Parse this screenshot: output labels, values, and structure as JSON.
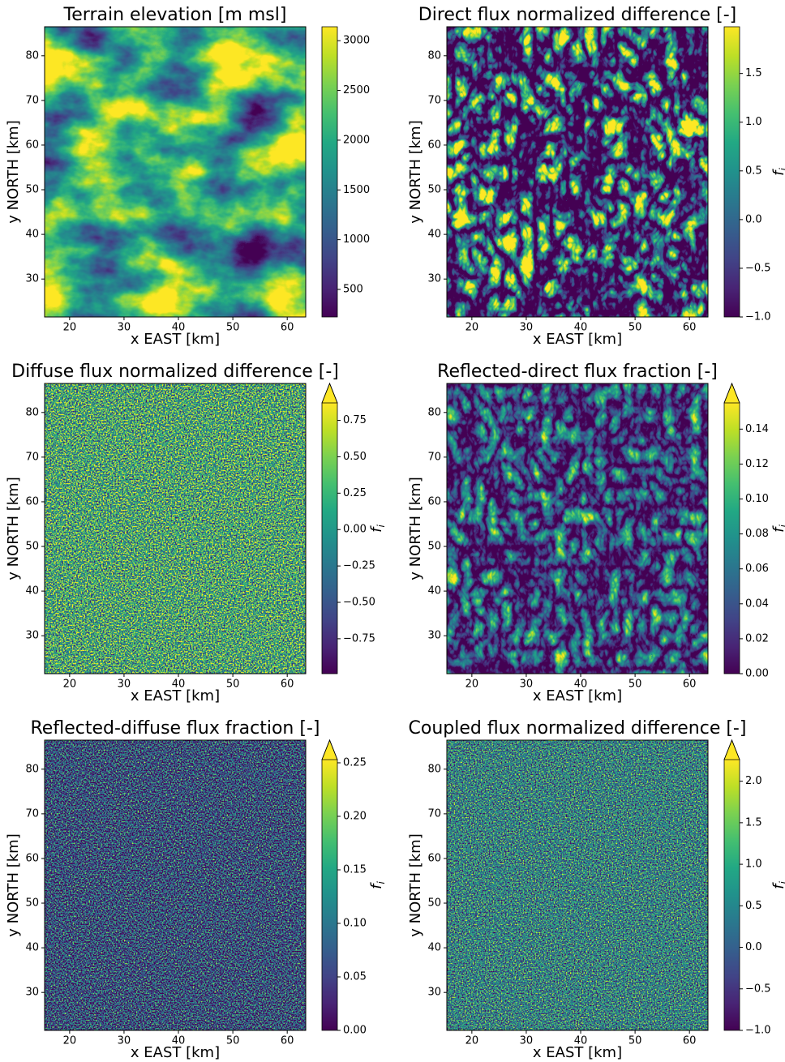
{
  "chart_data": [
    {
      "type": "heatmap",
      "title": "Terrain elevation [m msl]",
      "xlabel": "x EAST [km]",
      "ylabel": "y NORTH [km]",
      "xlim": [
        15.4,
        63.4
      ],
      "ylim": [
        21.5,
        86.5
      ],
      "xticks": [
        20,
        30,
        40,
        50,
        60
      ],
      "yticks": [
        30,
        40,
        50,
        60,
        70,
        80
      ],
      "colormap": "viridis",
      "colorbar": {
        "lim": [
          223,
          3140
        ],
        "ticks": [
          500,
          1000,
          1500,
          2000,
          2500,
          3000
        ],
        "extend": "neither"
      }
    },
    {
      "type": "heatmap",
      "title": "Direct flux normalized difference [-]",
      "xlabel": "x EAST [km]",
      "ylabel": "y NORTH [km]",
      "xlim": [
        15.4,
        63.4
      ],
      "ylim": [
        21.5,
        86.5
      ],
      "xticks": [
        20,
        30,
        40,
        50,
        60
      ],
      "yticks": [
        30,
        40,
        50,
        60,
        70,
        80
      ],
      "colormap": "viridis",
      "colorbar": {
        "lim": [
          -1,
          1.98
        ],
        "ticks": [
          {
            "value": -1,
            "label": "−1.0"
          },
          {
            "value": -0.5,
            "label": "−0.5"
          },
          {
            "value": 0,
            "label": "0.0"
          },
          0.5,
          {
            "value": 1,
            "label": "1.0"
          },
          1.5
        ],
        "extend": "neither",
        "label": {
          "base": "f",
          "sub": "i"
        }
      }
    },
    {
      "type": "heatmap",
      "title": "Diffuse flux normalized difference [-]",
      "xlabel": "x EAST [km]",
      "ylabel": "y NORTH [km]",
      "xlim": [
        15.4,
        63.4
      ],
      "ylim": [
        21.5,
        86.5
      ],
      "xticks": [
        20,
        30,
        40,
        50,
        60
      ],
      "yticks": [
        30,
        40,
        50,
        60,
        70,
        80
      ],
      "colormap": "viridis",
      "colorbar": {
        "lim": [
          -0.99,
          0.87
        ],
        "ticks": [
          {
            "value": -0.75,
            "label": "−0.75"
          },
          {
            "value": -0.5,
            "label": "−0.50"
          },
          {
            "value": -0.25,
            "label": "−0.25"
          },
          {
            "value": 0,
            "label": "0.00"
          },
          0.25,
          {
            "value": 0.5,
            "label": "0.50"
          },
          0.75
        ],
        "extend": "max",
        "label": {
          "base": "f",
          "sub": "i"
        }
      }
    },
    {
      "type": "heatmap",
      "title": "Reflected-direct flux fraction [-]",
      "xlabel": "x EAST [km]",
      "ylabel": "y NORTH [km]",
      "xlim": [
        15.4,
        63.4
      ],
      "ylim": [
        21.5,
        86.5
      ],
      "xticks": [
        20,
        30,
        40,
        50,
        60
      ],
      "yticks": [
        30,
        40,
        50,
        60,
        70,
        80
      ],
      "colormap": "viridis",
      "colorbar": {
        "lim": [
          0,
          0.155
        ],
        "ticks": [
          {
            "value": 0,
            "label": "0.00"
          },
          0.02,
          0.04,
          0.06,
          0.08,
          {
            "value": 0.1,
            "label": "0.10"
          },
          0.12,
          0.14
        ],
        "extend": "max",
        "label": {
          "base": "f",
          "sub": "i"
        }
      }
    },
    {
      "type": "heatmap",
      "title": "Reflected-diffuse flux fraction [-]",
      "xlabel": "x EAST [km]",
      "ylabel": "y NORTH [km]",
      "xlim": [
        15.4,
        63.4
      ],
      "ylim": [
        21.5,
        86.5
      ],
      "xticks": [
        20,
        30,
        40,
        50,
        60
      ],
      "yticks": [
        30,
        40,
        50,
        60,
        70,
        80
      ],
      "colormap": "viridis",
      "colorbar": {
        "lim": [
          0,
          0.253
        ],
        "ticks": [
          {
            "value": 0,
            "label": "0.00"
          },
          0.05,
          {
            "value": 0.1,
            "label": "0.10"
          },
          0.15,
          {
            "value": 0.2,
            "label": "0.20"
          },
          0.25
        ],
        "extend": "max",
        "label": {
          "base": "f",
          "sub": "i"
        }
      }
    },
    {
      "type": "heatmap",
      "title": "Coupled flux normalized difference [-]",
      "xlabel": "x EAST [km]",
      "ylabel": "y NORTH [km]",
      "xlim": [
        15.4,
        63.4
      ],
      "ylim": [
        21.5,
        86.5
      ],
      "xticks": [
        20,
        30,
        40,
        50,
        60
      ],
      "yticks": [
        30,
        40,
        50,
        60,
        70,
        80
      ],
      "colormap": "viridis",
      "colorbar": {
        "lim": [
          -1,
          2.26
        ],
        "ticks": [
          {
            "value": -1,
            "label": "−1.0"
          },
          {
            "value": -0.5,
            "label": "−0.5"
          },
          {
            "value": 0,
            "label": "0.0"
          },
          0.5,
          {
            "value": 1,
            "label": "1.0"
          },
          1.5,
          {
            "value": 2,
            "label": "2.0"
          }
        ],
        "extend": "max",
        "label": {
          "base": "f",
          "sub": "i"
        }
      }
    }
  ]
}
